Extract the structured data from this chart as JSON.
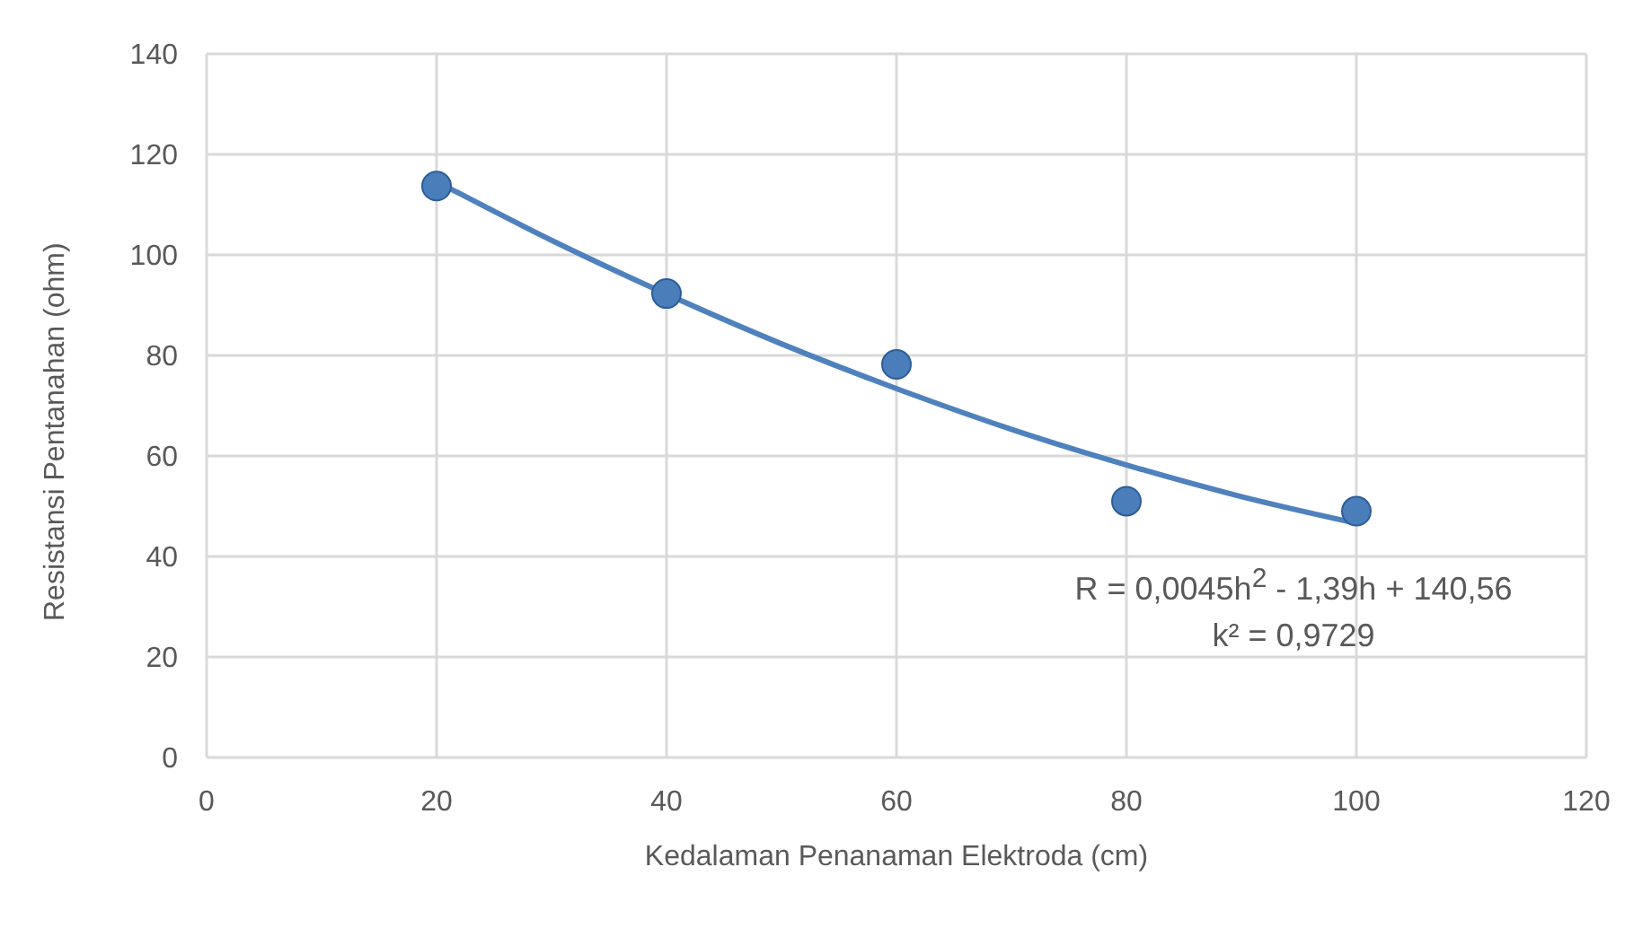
{
  "chart_data": {
    "type": "scatter",
    "xlabel": "Kedalaman Penanaman Elektroda (cm)",
    "ylabel": "Resistansi Pentanahan (ohm)",
    "xlim": [
      0,
      120
    ],
    "xticks": [
      0,
      20,
      40,
      60,
      80,
      100,
      120
    ],
    "ylim": [
      0,
      140
    ],
    "yticks": [
      0,
      20,
      40,
      60,
      80,
      100,
      120,
      140
    ],
    "grid": true,
    "marker": "circle",
    "series": [
      {
        "color": "#4a7ebb",
        "x": [
          20,
          40,
          60,
          80,
          100
        ],
        "values": [
          113.7,
          92.3,
          78.2,
          51,
          49
        ]
      },
      {
        "type": "line",
        "color": "#4f81bd",
        "marker": "none",
        "x": [
          20,
          30,
          40,
          50,
          60,
          70,
          80,
          90,
          100
        ],
        "values": [
          114.6,
          102.9,
          92.2,
          82.3,
          73.4,
          65.3,
          58.2,
          51.9,
          46.6
        ]
      }
    ],
    "annotations": [
      "R = 0,0045h$^{2}$ - 1,39h + 140,56",
      "k² = 0,9729"
    ]
  }
}
